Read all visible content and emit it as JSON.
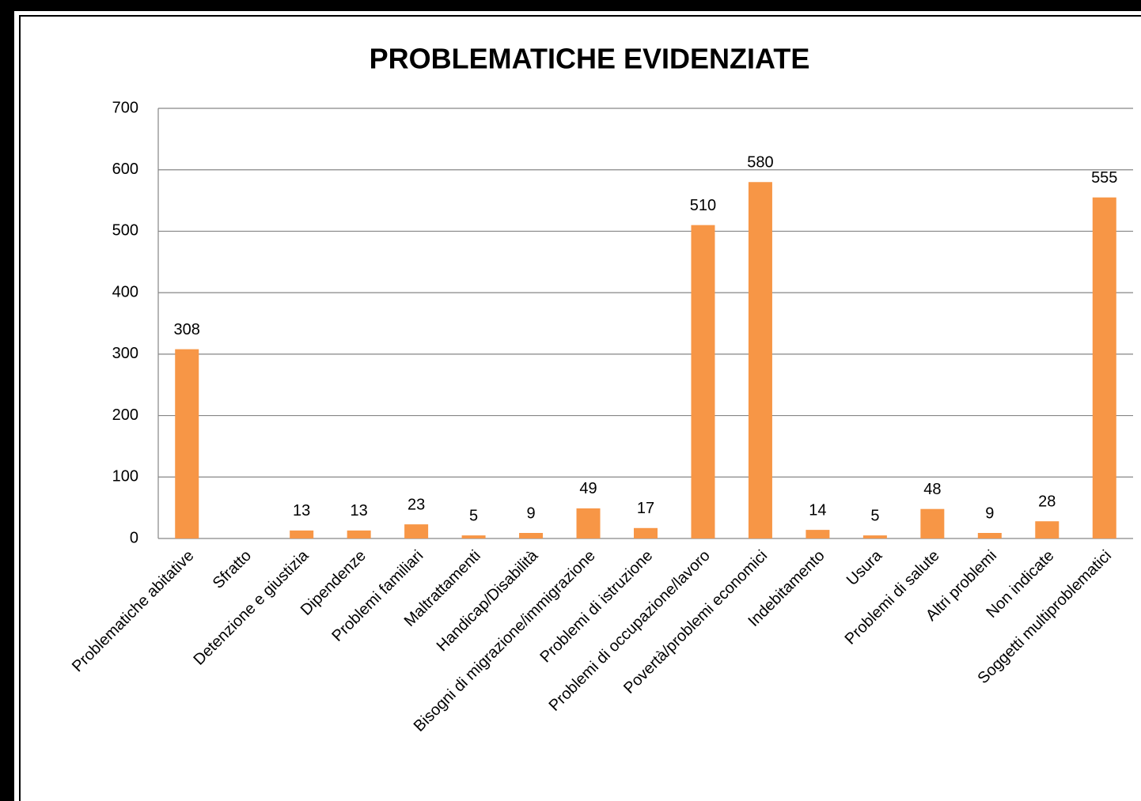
{
  "chart_data": {
    "type": "bar",
    "title": "PROBLEMATICHE EVIDENZIATE",
    "categories": [
      "Problematiche abitative",
      "Sfratto",
      "Detenzione e giustizia",
      "Dipendenze",
      "Problemi familiari",
      "Maltrattamenti",
      "Handicap/Disabilità",
      "Bisogni di migrazione/immigrazione",
      "Problemi di istruzione",
      "Problemi di occupazione/lavoro",
      "Povertà/problemi economici",
      "Indebitamento",
      "Usura",
      "Problemi di salute",
      "Altri problemi",
      "Non indicate",
      "Soggetti multiproblematici"
    ],
    "values": [
      308,
      null,
      13,
      13,
      23,
      5,
      9,
      49,
      17,
      510,
      580,
      14,
      5,
      48,
      9,
      28,
      555
    ],
    "color": "#f79646",
    "ylim": [
      0,
      700
    ],
    "yticks": [
      0,
      100,
      200,
      300,
      400,
      500,
      600,
      700
    ],
    "grid": true
  }
}
